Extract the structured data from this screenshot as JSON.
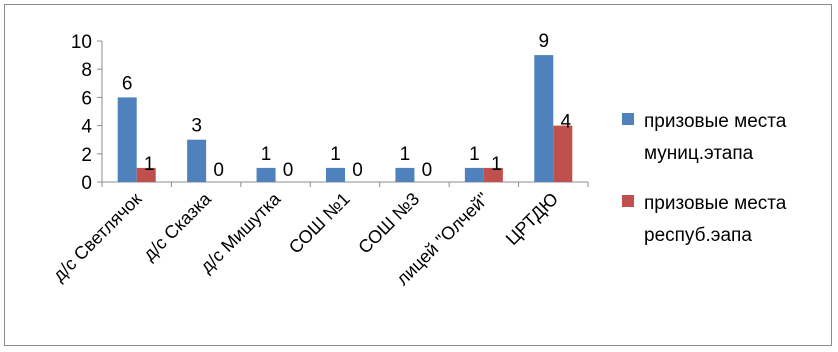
{
  "chart_data": {
    "type": "bar",
    "categories": [
      "д/с Светлячок",
      "д/с Сказка",
      "д/с Мишутка",
      "СОШ №1",
      "СОШ №3",
      "лицей \"Олчей\"",
      "ЦРТДЮ"
    ],
    "series": [
      {
        "name": "призовые места муниц.этапа",
        "values": [
          6,
          3,
          1,
          1,
          1,
          1,
          9
        ],
        "color": "#4f81bd"
      },
      {
        "name": "призовые места респуб.эапа",
        "values": [
          1,
          0,
          0,
          0,
          0,
          1,
          4
        ],
        "color": "#c0504d"
      }
    ],
    "legend": {
      "position": "right",
      "lines": [
        [
          "призовые места",
          "муниц.этапа"
        ],
        [
          "призовые места",
          "респуб.эапа"
        ]
      ]
    },
    "yticks": [
      "0",
      "2",
      "4",
      "6",
      "8",
      "10"
    ],
    "ylim": [
      0,
      10
    ],
    "grid": false,
    "title": "",
    "xlabel": "",
    "ylabel": ""
  }
}
